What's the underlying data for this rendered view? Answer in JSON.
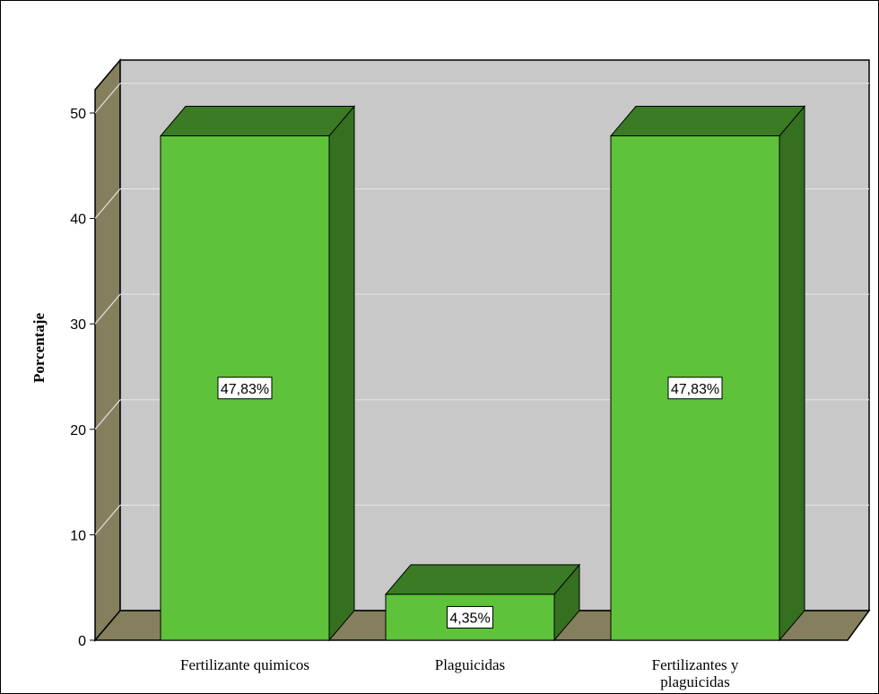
{
  "chart_data": {
    "type": "bar",
    "style": "3d",
    "categories": [
      "Fertilizante quimicos",
      "Plaguicidas",
      "Fertilizantes y plaguicidas"
    ],
    "values": [
      47.83,
      4.35,
      47.83
    ],
    "data_labels": [
      "47,83%",
      "4,35%",
      "47,83%"
    ],
    "ylabel": "Porcentaje",
    "xlabel": "",
    "ylim": [
      0,
      50
    ],
    "yticks": [
      "0",
      "10",
      "20",
      "30",
      "40",
      "50"
    ],
    "grid": true,
    "legend": "none"
  },
  "colors": {
    "bar_front": "#5ec23a",
    "bar_top": "#3a7b24",
    "bar_side": "#356f20",
    "wall": "#c8c8c8",
    "floor_side": "#857f5e",
    "gridline": "#e2e2e2",
    "outline": "#000000"
  }
}
